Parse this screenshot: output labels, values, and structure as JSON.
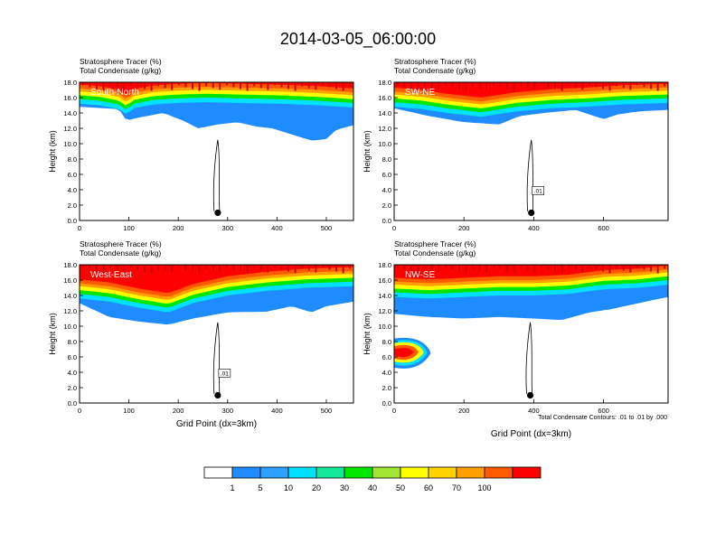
{
  "figure": {
    "title": "2014-03-05_06:00:00",
    "footnote": "Total Condensate Contours: .01 to .01 by .000"
  },
  "colorbar": {
    "labels": [
      "1",
      "5",
      "10",
      "20",
      "30",
      "40",
      "50",
      "60",
      "70",
      "100"
    ],
    "colors": [
      "#ffffff",
      "#1e8cff",
      "#2ea0ff",
      "#00e0ff",
      "#16e89a",
      "#00e600",
      "#a0e632",
      "#ffff00",
      "#ffd200",
      "#ffa000",
      "#ff5a00",
      "#ff0000"
    ]
  },
  "chart_data": [
    {
      "type": "heatmap",
      "panel": "top-left",
      "line1": "Stratosphere Tracer   (%)",
      "line2": "Total Condensate   (g/kg)",
      "label": "South-North",
      "ylabel": "Height (km)",
      "xlabel": "",
      "xlim": [
        0,
        555
      ],
      "ylim": [
        0,
        18
      ],
      "xticks": [
        "0",
        "100",
        "200",
        "300",
        "400",
        "500"
      ],
      "xtick_values": [
        0,
        100,
        200,
        300,
        400,
        500
      ],
      "yticks": [
        "0.0",
        "2.0",
        "4.0",
        "6.0",
        "8.0",
        "10.0",
        "12.0",
        "14.0",
        "16.0",
        "18.0"
      ],
      "contour_label": "",
      "marker_x": 280,
      "marker_y": 1.0,
      "tracer_floor": [
        [
          0,
          15.2
        ],
        [
          40,
          15.0
        ],
        [
          80,
          14.5
        ],
        [
          95,
          13.8
        ],
        [
          110,
          14.6
        ],
        [
          150,
          15.1
        ],
        [
          200,
          15.3
        ],
        [
          260,
          15.4
        ],
        [
          320,
          15.3
        ],
        [
          400,
          15.2
        ],
        [
          480,
          15.0
        ],
        [
          555,
          14.7
        ]
      ],
      "blue_bottom": [
        [
          0,
          14.8
        ],
        [
          80,
          14.5
        ],
        [
          95,
          13.0
        ],
        [
          120,
          13.4
        ],
        [
          170,
          14.0
        ],
        [
          210,
          13.0
        ],
        [
          240,
          12.0
        ],
        [
          280,
          12.5
        ],
        [
          320,
          12.8
        ],
        [
          360,
          12.2
        ],
        [
          390,
          12.0
        ],
        [
          430,
          11.2
        ],
        [
          470,
          10.4
        ],
        [
          500,
          10.6
        ],
        [
          520,
          11.8
        ],
        [
          555,
          12.4
        ]
      ]
    },
    {
      "type": "heatmap",
      "panel": "top-right",
      "line1": "Stratosphere Tracer   (%)",
      "line2": "Total Condensate   (g/kg)",
      "label": "SW-NE",
      "ylabel": "Height (km)",
      "xlabel": "",
      "xlim": [
        0,
        785
      ],
      "ylim": [
        0,
        18
      ],
      "xticks": [
        "0",
        "200",
        "400",
        "600"
      ],
      "xtick_values": [
        0,
        200,
        400,
        600
      ],
      "yticks": [
        "0.0",
        "2.0",
        "4.0",
        "6.0",
        "8.0",
        "10.0",
        "12.0",
        "14.0",
        "16.0",
        "18.0"
      ],
      "contour_label": ".01",
      "marker_x": 393,
      "marker_y": 1.0,
      "tracer_floor": [
        [
          0,
          14.8
        ],
        [
          80,
          14.5
        ],
        [
          150,
          14.0
        ],
        [
          250,
          13.5
        ],
        [
          350,
          14.2
        ],
        [
          450,
          14.6
        ],
        [
          550,
          14.8
        ],
        [
          650,
          15.1
        ],
        [
          785,
          15.3
        ]
      ],
      "blue_bottom": [
        [
          0,
          14.6
        ],
        [
          100,
          13.6
        ],
        [
          200,
          12.8
        ],
        [
          300,
          12.5
        ],
        [
          360,
          13.6
        ],
        [
          430,
          14.0
        ],
        [
          520,
          14.4
        ],
        [
          600,
          13.2
        ],
        [
          640,
          13.8
        ],
        [
          700,
          14.2
        ],
        [
          785,
          14.4
        ]
      ]
    },
    {
      "type": "heatmap",
      "panel": "bottom-left",
      "line1": "Stratosphere Tracer   (%)",
      "line2": "Total Condensate   (g/kg)",
      "label": "West-East",
      "ylabel": "Height (km)",
      "xlabel": "Grid Point (dx=3km)",
      "xlim": [
        0,
        555
      ],
      "ylim": [
        0,
        18
      ],
      "xticks": [
        "0",
        "100",
        "200",
        "300",
        "400",
        "500"
      ],
      "xtick_values": [
        0,
        100,
        200,
        300,
        400,
        500
      ],
      "yticks": [
        "0.0",
        "2.0",
        "4.0",
        "6.0",
        "8.0",
        "10.0",
        "12.0",
        "14.0",
        "16.0",
        "18.0"
      ],
      "contour_label": ".01",
      "marker_x": 280,
      "marker_y": 1.0,
      "tracer_floor": [
        [
          0,
          13.6
        ],
        [
          60,
          13.2
        ],
        [
          120,
          12.4
        ],
        [
          180,
          11.8
        ],
        [
          230,
          13.0
        ],
        [
          300,
          14.0
        ],
        [
          380,
          14.6
        ],
        [
          460,
          15.0
        ],
        [
          555,
          15.2
        ]
      ],
      "blue_bottom": [
        [
          0,
          13.0
        ],
        [
          60,
          11.2
        ],
        [
          120,
          10.6
        ],
        [
          180,
          10.2
        ],
        [
          230,
          11.0
        ],
        [
          300,
          11.8
        ],
        [
          380,
          11.9
        ],
        [
          430,
          12.6
        ],
        [
          470,
          11.8
        ],
        [
          500,
          12.6
        ],
        [
          555,
          13.2
        ]
      ]
    },
    {
      "type": "heatmap",
      "panel": "bottom-right",
      "line1": "Stratosphere Tracer   (%)",
      "line2": "Total Condensate   (g/kg)",
      "label": "NW-SE",
      "ylabel": "Height (km)",
      "xlabel": "Grid Point (dx=3km)",
      "xlim": [
        0,
        785
      ],
      "ylim": [
        0,
        18
      ],
      "xticks": [
        "0",
        "200",
        "400",
        "600"
      ],
      "xtick_values": [
        0,
        200,
        400,
        600
      ],
      "yticks": [
        "0.0",
        "2.0",
        "4.0",
        "6.0",
        "8.0",
        "10.0",
        "12.0",
        "14.0",
        "16.0",
        "18.0"
      ],
      "contour_label": "",
      "marker_x": 390,
      "marker_y": 1.0,
      "tracer_floor": [
        [
          0,
          13.8
        ],
        [
          100,
          13.6
        ],
        [
          200,
          13.8
        ],
        [
          300,
          14.0
        ],
        [
          400,
          14.0
        ],
        [
          500,
          14.2
        ],
        [
          600,
          14.8
        ],
        [
          700,
          15.0
        ],
        [
          785,
          15.4
        ]
      ],
      "blue_bottom": [
        [
          0,
          11.6
        ],
        [
          100,
          11.2
        ],
        [
          200,
          11.0
        ],
        [
          300,
          11.2
        ],
        [
          400,
          11.0
        ],
        [
          480,
          10.8
        ],
        [
          560,
          11.8
        ],
        [
          620,
          12.2
        ],
        [
          700,
          13.0
        ],
        [
          785,
          13.8
        ]
      ]
    }
  ]
}
